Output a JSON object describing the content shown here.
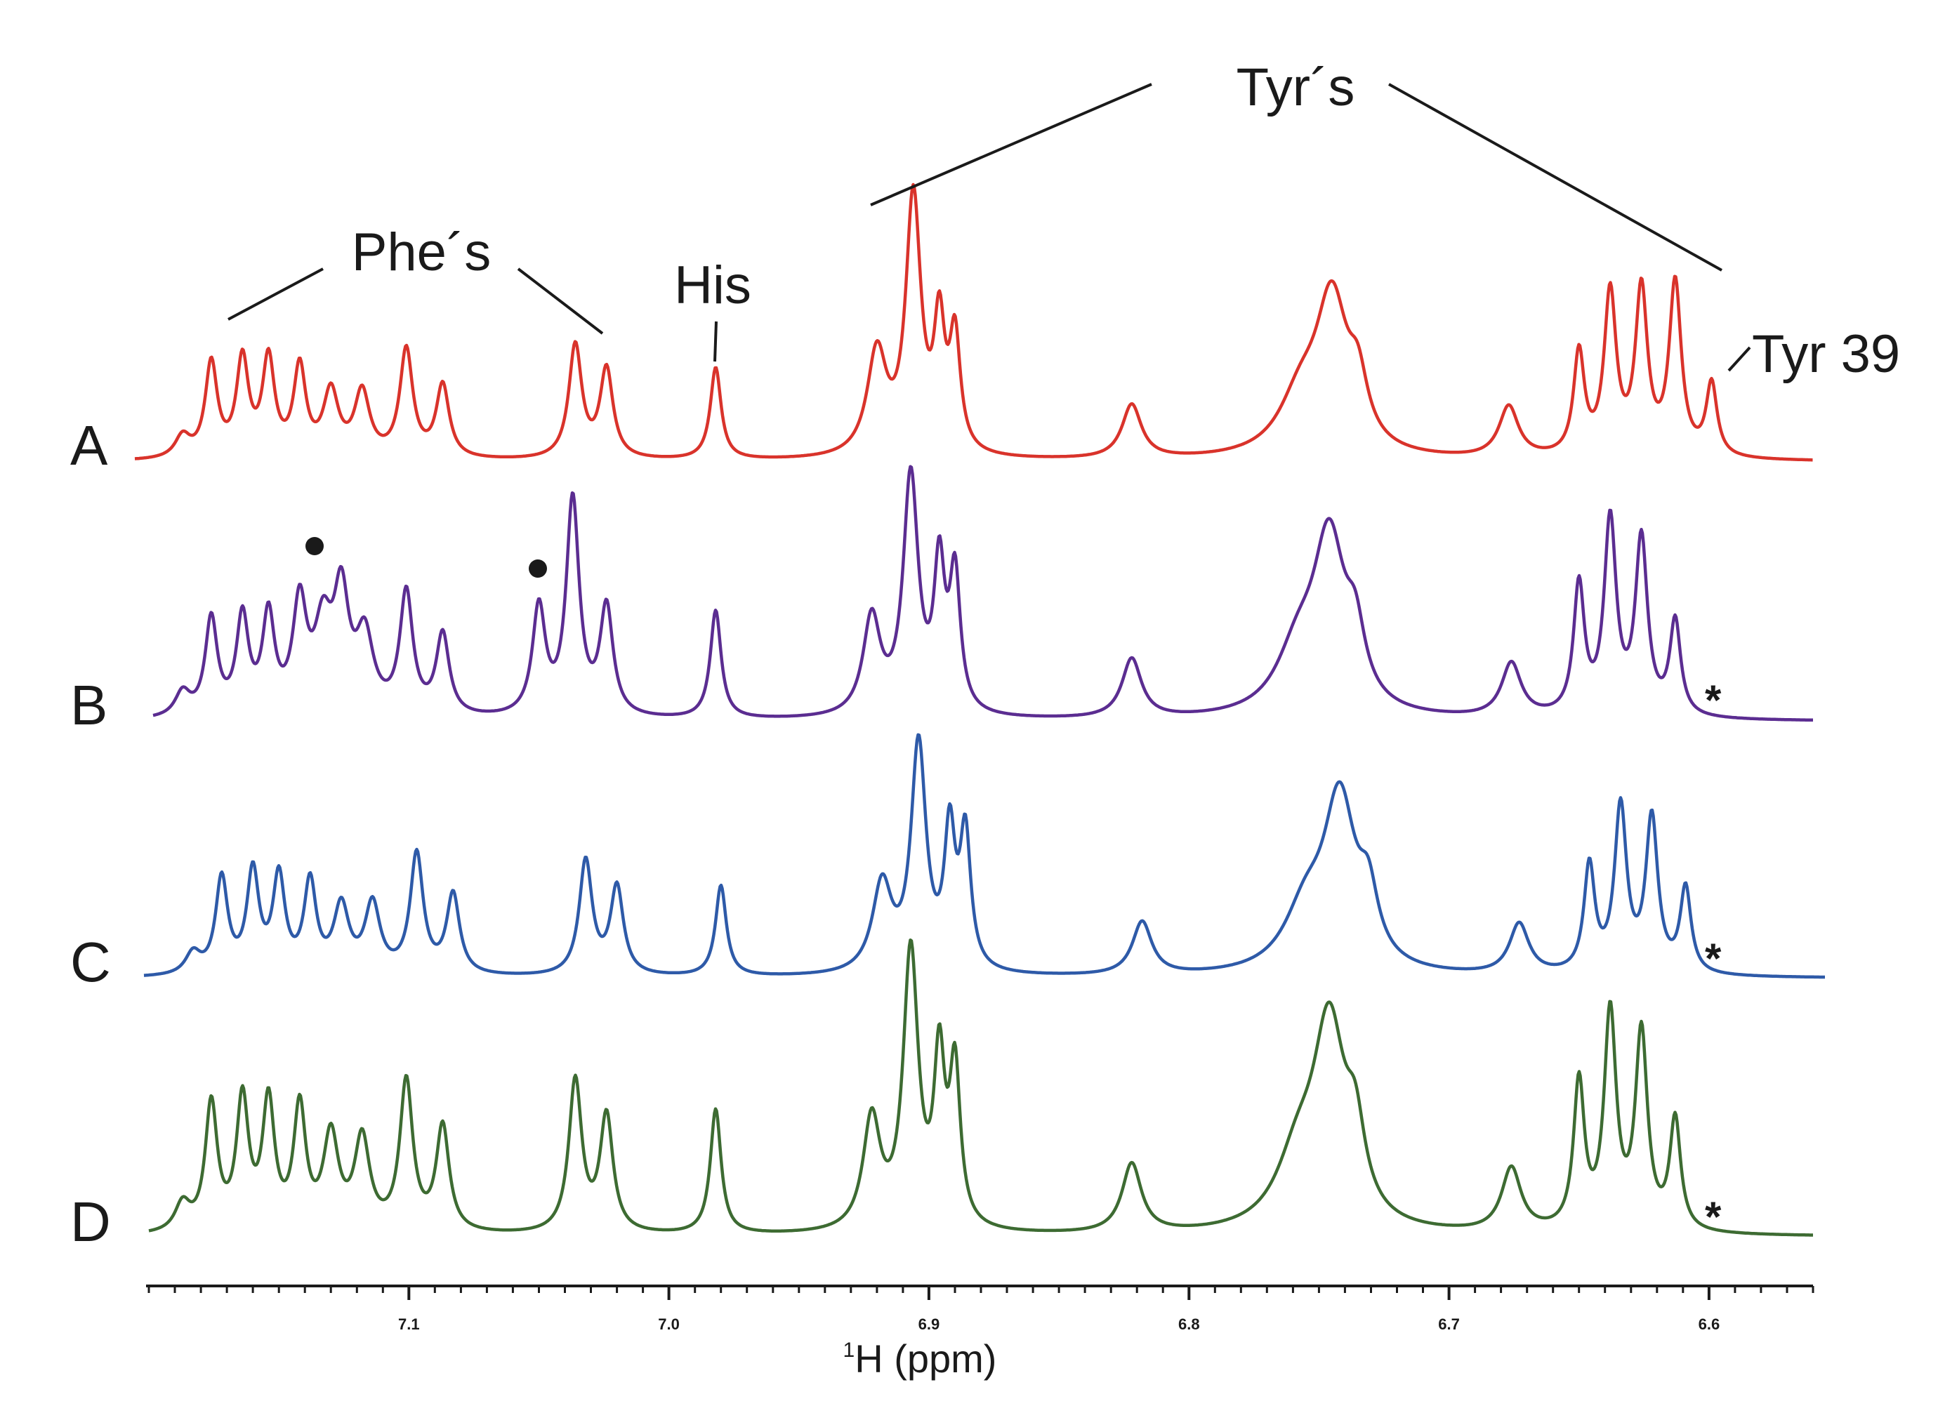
{
  "chart_data": {
    "type": "line",
    "title": "",
    "xlabel": "1H (ppm)",
    "xlabel_parts": {
      "sup": "1",
      "main": "H (ppm)"
    },
    "ylabel": "",
    "xlim": [
      7.2,
      6.56
    ],
    "x_reversed": true,
    "xticks": [
      {
        "value": 7.1,
        "label": "7.1"
      },
      {
        "value": 7.0,
        "label": "7.0"
      },
      {
        "value": 6.9,
        "label": "6.9"
      },
      {
        "value": 6.8,
        "label": "6.8"
      },
      {
        "value": 6.7,
        "label": "6.7"
      },
      {
        "value": 6.6,
        "label": "6.6"
      }
    ],
    "series": [
      {
        "name": "A",
        "color": "#d9332b",
        "star": "",
        "peaks": [
          [
            7.187,
            0.08,
            0.0035
          ],
          [
            7.176,
            0.35,
            0.0028
          ],
          [
            7.164,
            0.36,
            0.0028
          ],
          [
            7.154,
            0.36,
            0.0028
          ],
          [
            7.142,
            0.33,
            0.0028
          ],
          [
            7.13,
            0.24,
            0.0035
          ],
          [
            7.118,
            0.24,
            0.0035
          ],
          [
            7.101,
            0.4,
            0.003
          ],
          [
            7.087,
            0.27,
            0.003
          ],
          [
            7.036,
            0.42,
            0.003
          ],
          [
            7.024,
            0.33,
            0.003
          ],
          [
            6.982,
            0.34,
            0.0025
          ],
          [
            6.92,
            0.38,
            0.0045
          ],
          [
            6.906,
            0.95,
            0.0035
          ],
          [
            6.896,
            0.45,
            0.0025
          ],
          [
            6.89,
            0.42,
            0.0025
          ],
          [
            6.822,
            0.2,
            0.0045
          ],
          [
            6.757,
            0.2,
            0.01
          ],
          [
            6.745,
            0.55,
            0.0075
          ],
          [
            6.735,
            0.2,
            0.0045
          ],
          [
            6.677,
            0.19,
            0.0045
          ],
          [
            6.65,
            0.38,
            0.0025
          ],
          [
            6.638,
            0.6,
            0.0028
          ],
          [
            6.626,
            0.61,
            0.0028
          ],
          [
            6.613,
            0.64,
            0.0028
          ],
          [
            6.599,
            0.27,
            0.0025
          ]
        ]
      },
      {
        "name": "B",
        "color": "#5b2d91",
        "star": "*",
        "peaks": [
          [
            7.187,
            0.09,
            0.0035
          ],
          [
            7.176,
            0.36,
            0.0028
          ],
          [
            7.164,
            0.36,
            0.0028
          ],
          [
            7.154,
            0.36,
            0.0028
          ],
          [
            7.142,
            0.4,
            0.0032
          ],
          [
            7.133,
            0.3,
            0.004
          ],
          [
            7.126,
            0.42,
            0.0035
          ],
          [
            7.117,
            0.28,
            0.004
          ],
          [
            7.101,
            0.45,
            0.003
          ],
          [
            7.087,
            0.3,
            0.003
          ],
          [
            7.05,
            0.4,
            0.003
          ],
          [
            7.037,
            0.8,
            0.003
          ],
          [
            7.024,
            0.4,
            0.003
          ],
          [
            6.982,
            0.4,
            0.0025
          ],
          [
            6.922,
            0.36,
            0.004
          ],
          [
            6.907,
            0.88,
            0.0035
          ],
          [
            6.896,
            0.52,
            0.0025
          ],
          [
            6.89,
            0.5,
            0.0025
          ],
          [
            6.822,
            0.22,
            0.0045
          ],
          [
            6.758,
            0.22,
            0.01
          ],
          [
            6.746,
            0.62,
            0.0075
          ],
          [
            6.736,
            0.22,
            0.0045
          ],
          [
            6.676,
            0.2,
            0.0045
          ],
          [
            6.65,
            0.48,
            0.0025
          ],
          [
            6.638,
            0.72,
            0.0028
          ],
          [
            6.626,
            0.65,
            0.0028
          ],
          [
            6.613,
            0.35,
            0.0025
          ]
        ]
      },
      {
        "name": "C",
        "color": "#2e5aa8",
        "star": "*",
        "peaks": [
          [
            7.183,
            0.08,
            0.0035
          ],
          [
            7.172,
            0.36,
            0.0028
          ],
          [
            7.16,
            0.38,
            0.0028
          ],
          [
            7.15,
            0.36,
            0.0028
          ],
          [
            7.138,
            0.34,
            0.0028
          ],
          [
            7.126,
            0.25,
            0.0035
          ],
          [
            7.114,
            0.26,
            0.0035
          ],
          [
            7.097,
            0.45,
            0.003
          ],
          [
            7.083,
            0.3,
            0.003
          ],
          [
            7.032,
            0.43,
            0.003
          ],
          [
            7.02,
            0.33,
            0.003
          ],
          [
            6.98,
            0.34,
            0.0025
          ],
          [
            6.918,
            0.33,
            0.0045
          ],
          [
            6.904,
            0.85,
            0.0035
          ],
          [
            6.892,
            0.5,
            0.0025
          ],
          [
            6.886,
            0.5,
            0.0025
          ],
          [
            6.818,
            0.2,
            0.0045
          ],
          [
            6.755,
            0.22,
            0.01
          ],
          [
            6.742,
            0.62,
            0.0075
          ],
          [
            6.731,
            0.22,
            0.0045
          ],
          [
            6.673,
            0.19,
            0.0045
          ],
          [
            6.646,
            0.4,
            0.0025
          ],
          [
            6.634,
            0.62,
            0.0028
          ],
          [
            6.622,
            0.58,
            0.0028
          ],
          [
            6.609,
            0.32,
            0.0025
          ]
        ]
      },
      {
        "name": "D",
        "color": "#3d6b32",
        "star": "*",
        "peaks": [
          [
            7.187,
            0.1,
            0.0035
          ],
          [
            7.176,
            0.46,
            0.0028
          ],
          [
            7.164,
            0.47,
            0.0028
          ],
          [
            7.154,
            0.46,
            0.0028
          ],
          [
            7.142,
            0.44,
            0.0028
          ],
          [
            7.13,
            0.34,
            0.0035
          ],
          [
            7.118,
            0.33,
            0.0035
          ],
          [
            7.101,
            0.54,
            0.003
          ],
          [
            7.087,
            0.38,
            0.003
          ],
          [
            7.036,
            0.55,
            0.003
          ],
          [
            7.024,
            0.42,
            0.003
          ],
          [
            6.982,
            0.45,
            0.0025
          ],
          [
            6.922,
            0.4,
            0.004
          ],
          [
            6.907,
            1.0,
            0.0035
          ],
          [
            6.896,
            0.58,
            0.0025
          ],
          [
            6.89,
            0.56,
            0.0025
          ],
          [
            6.822,
            0.25,
            0.0045
          ],
          [
            6.758,
            0.24,
            0.01
          ],
          [
            6.746,
            0.7,
            0.0075
          ],
          [
            6.736,
            0.26,
            0.0045
          ],
          [
            6.676,
            0.23,
            0.0045
          ],
          [
            6.65,
            0.53,
            0.0025
          ],
          [
            6.638,
            0.78,
            0.0028
          ],
          [
            6.626,
            0.71,
            0.0028
          ],
          [
            6.613,
            0.4,
            0.0025
          ]
        ]
      }
    ],
    "annotations": {
      "phe": "Phe´s",
      "his": "His",
      "tyr": "Tyr´s",
      "tyr39": "Tyr 39",
      "dot_markers_series": "B",
      "dot_markers_ppm": [
        7.133,
        7.05
      ]
    }
  }
}
